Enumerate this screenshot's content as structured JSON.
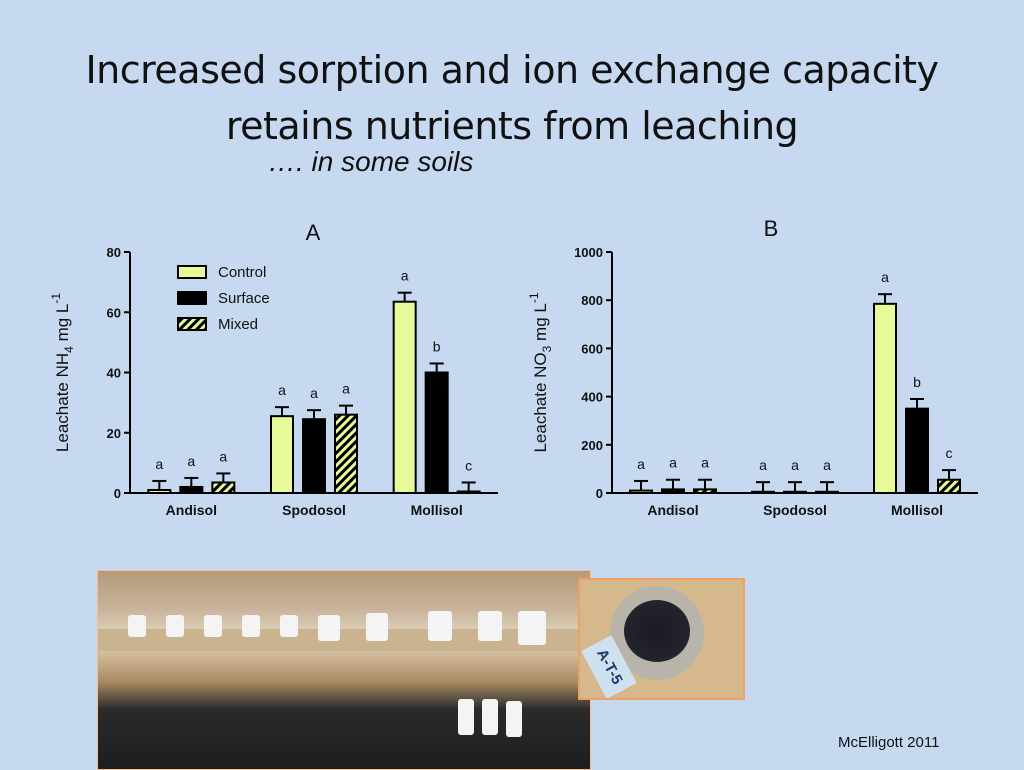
{
  "slide": {
    "title_line1": "Increased sorption and ion exchange capacity",
    "title_line2": "retains nutrients from leaching",
    "subtitle": "….  in some soils",
    "credit": "McElligott 2011",
    "photo_tag": "A-T-5"
  },
  "chart_data": [
    {
      "type": "bar",
      "panel_label": "A",
      "ylabel_text": "Leachate NH",
      "ylabel_sub": "4",
      "ylabel_unit": " mg L",
      "ylabel_sup": "-1",
      "ylim": [
        0,
        80
      ],
      "yticks": [
        0,
        20,
        40,
        60,
        80
      ],
      "categories": [
        "Andisol",
        "Spodosol",
        "Mollisol"
      ],
      "legend_placement": "top-left",
      "series": [
        {
          "name": "Control",
          "color": "#e6fa9a",
          "values": [
            1,
            25.5,
            63.5
          ],
          "errors": [
            3,
            3,
            3
          ],
          "letters": [
            "a",
            "a",
            "a"
          ]
        },
        {
          "name": "Surface",
          "color": "#000000",
          "values": [
            2,
            24.5,
            40
          ],
          "errors": [
            3,
            3,
            3
          ],
          "letters": [
            "a",
            "a",
            "b"
          ]
        },
        {
          "name": "Mixed",
          "color": "hatch",
          "values": [
            3.5,
            26,
            0.5
          ],
          "errors": [
            3,
            3,
            3
          ],
          "letters": [
            "a",
            "a",
            "c"
          ]
        }
      ]
    },
    {
      "type": "bar",
      "panel_label": "B",
      "ylabel_text": "Leachate NO",
      "ylabel_sub": "3",
      "ylabel_unit": " mg L",
      "ylabel_sup": "-1",
      "ylim": [
        0,
        1000
      ],
      "yticks": [
        0,
        200,
        400,
        600,
        800,
        1000
      ],
      "categories": [
        "Andisol",
        "Spodosol",
        "Mollisol"
      ],
      "series": [
        {
          "name": "Control",
          "color": "#e6fa9a",
          "values": [
            10,
            5,
            785
          ],
          "errors": [
            40,
            40,
            40
          ],
          "letters": [
            "a",
            "a",
            "a"
          ]
        },
        {
          "name": "Surface",
          "color": "#000000",
          "values": [
            15,
            5,
            350
          ],
          "errors": [
            40,
            40,
            40
          ],
          "letters": [
            "a",
            "a",
            "b"
          ]
        },
        {
          "name": "Mixed",
          "color": "hatch",
          "values": [
            15,
            5,
            55
          ],
          "errors": [
            40,
            40,
            40
          ],
          "letters": [
            "a",
            "a",
            "c"
          ]
        }
      ]
    }
  ]
}
